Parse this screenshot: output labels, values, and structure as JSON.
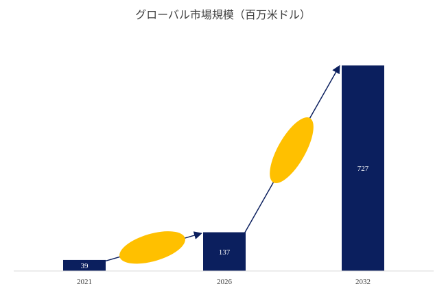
{
  "chart_data": {
    "type": "bar",
    "title": "グローバル市場規模（百万米ドル）",
    "categories": [
      "2021",
      "2026",
      "2032"
    ],
    "values": [
      39,
      137,
      727
    ],
    "xlabel": "",
    "ylabel": "",
    "ylim": [
      0,
      800
    ],
    "grid": false,
    "legend": "none",
    "data_labels": [
      "39",
      "137",
      "727"
    ],
    "colors": {
      "bar": "#0b1f5e",
      "label_on_bar": "#ffffff",
      "label_dark": "#ffffff",
      "arrow": "#0b1f5e",
      "ellipse": "#ffc000",
      "axis": "#d9d9d9"
    }
  }
}
